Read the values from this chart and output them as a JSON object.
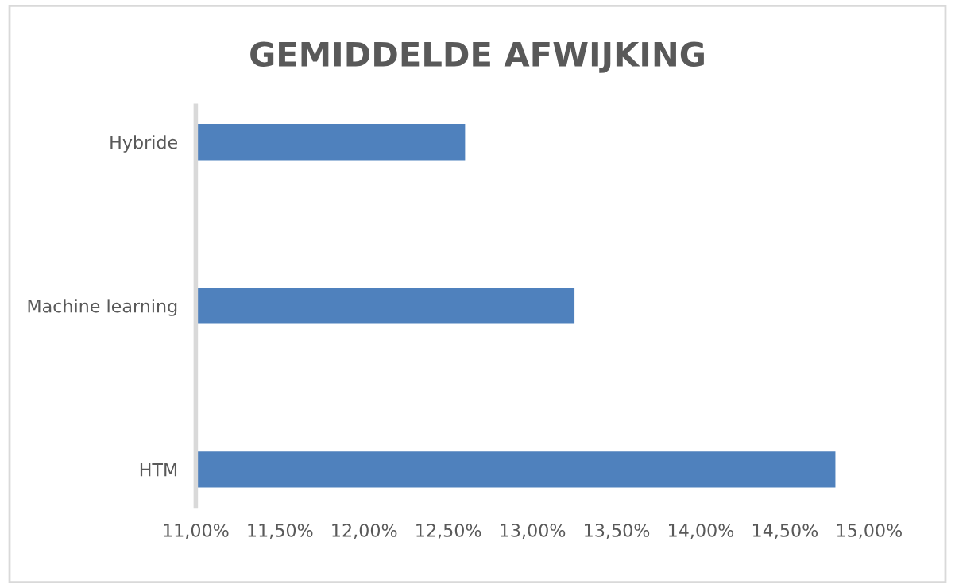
{
  "chart_data": {
    "type": "bar",
    "orientation": "horizontal",
    "title": "GEMIDDELDE AFWIJKING",
    "categories": [
      "Hybride",
      "Machine learning",
      "HTM"
    ],
    "values": [
      12.6,
      13.25,
      14.8
    ],
    "color": "#4f81bd",
    "xlim": [
      11,
      15
    ],
    "xticks": [
      {
        "value": 11,
        "label": "11,00%"
      },
      {
        "value": 11.5,
        "label": "11,50%"
      },
      {
        "value": 12,
        "label": "12,00%"
      },
      {
        "value": 12.5,
        "label": "12,50%"
      },
      {
        "value": 13,
        "label": "13,00%"
      },
      {
        "value": 13.5,
        "label": "13,50%"
      },
      {
        "value": 14,
        "label": "14,00%"
      },
      {
        "value": 14.5,
        "label": "14,50%"
      },
      {
        "value": 15,
        "label": "15,00%"
      }
    ],
    "grid": false,
    "legend": false
  }
}
